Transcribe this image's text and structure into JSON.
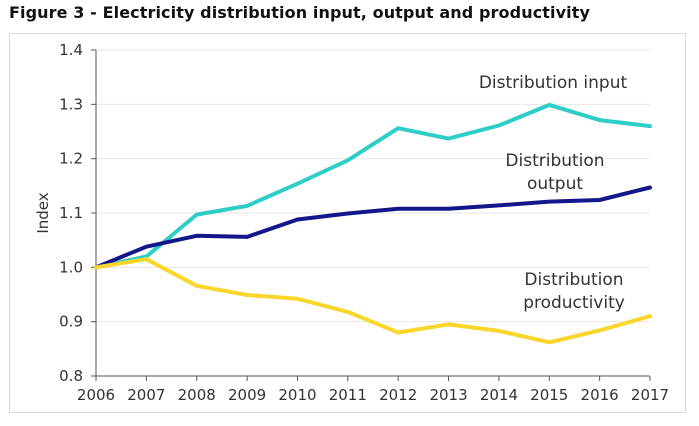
{
  "figure": {
    "title": "Figure 3 - Electricity distribution input, output and productivity"
  },
  "chart_data": {
    "type": "line",
    "title": "",
    "xlabel": "",
    "ylabel": "Index",
    "x": [
      "2006",
      "2007",
      "2008",
      "2009",
      "2010",
      "2011",
      "2012",
      "2013",
      "2014",
      "2015",
      "2016",
      "2017"
    ],
    "ylim": [
      0.8,
      1.4
    ],
    "yticks": [
      "0.8",
      "0.9",
      "1.0",
      "1.1",
      "1.2",
      "1.3",
      "1.4"
    ],
    "grid": "horizontal",
    "legend": "none",
    "series": [
      {
        "name": "Distribution input",
        "label_lines": [
          "Distribution input"
        ],
        "color": "#2ECDC8",
        "values": [
          1.0,
          1.02,
          1.097,
          1.113,
          1.154,
          1.197,
          1.256,
          1.237,
          1.261,
          1.299,
          1.271,
          1.26
        ]
      },
      {
        "name": "Distribution output",
        "label_lines": [
          "Distribution",
          "output"
        ],
        "color": "#13178A",
        "values": [
          1.0,
          1.038,
          1.058,
          1.056,
          1.088,
          1.099,
          1.108,
          1.108,
          1.114,
          1.121,
          1.124,
          1.147
        ]
      },
      {
        "name": "Distribution productivity",
        "label_lines": [
          "Distribution",
          "productivity"
        ],
        "color": "#F9D62B",
        "values": [
          1.0,
          1.015,
          0.966,
          0.949,
          0.942,
          0.918,
          0.88,
          0.895,
          0.883,
          0.862,
          0.884,
          0.91
        ]
      }
    ]
  }
}
